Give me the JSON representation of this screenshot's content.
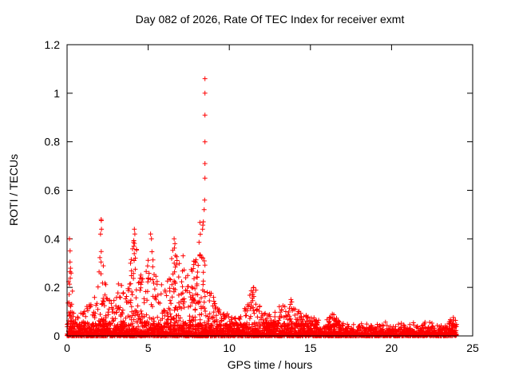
{
  "chart": {
    "title": "Day 082 of 2026, Rate Of TEC Index for receiver exmt",
    "xlabel": "GPS time / hours",
    "ylabel": "ROTI / TECUs"
  },
  "chart_data": {
    "type": "scatter",
    "title": "Day 082 of 2026, Rate Of TEC Index for receiver exmt",
    "xlabel": "GPS time / hours",
    "ylabel": "ROTI / TECUs",
    "xlim": [
      0,
      25
    ],
    "ylim": [
      0,
      1.2
    ],
    "xticks": [
      0,
      5,
      10,
      15,
      20,
      25
    ],
    "xtick_labels": [
      "0",
      "5",
      "10",
      "15",
      "20",
      "25"
    ],
    "yticks": [
      0,
      0.2,
      0.4,
      0.6,
      0.8,
      1,
      1.2
    ],
    "ytick_labels": [
      "0",
      "0.2",
      "0.4",
      "0.6",
      "0.8",
      "1",
      "1.2"
    ],
    "grid": false,
    "legend": "none",
    "marker": "plus",
    "marker_color": "#ff0000",
    "border_color": "#000000",
    "series_name": "ROTI",
    "data_x_range": [
      0,
      24
    ],
    "baseline_max": 0.06,
    "seed": 20260082,
    "envelope": [
      [
        0.0,
        0.42
      ],
      [
        0.2,
        0.4
      ],
      [
        0.35,
        0.15
      ],
      [
        0.5,
        0.1
      ],
      [
        1.0,
        0.1
      ],
      [
        1.3,
        0.13
      ],
      [
        1.6,
        0.16
      ],
      [
        1.9,
        0.2
      ],
      [
        2.1,
        0.48
      ],
      [
        2.3,
        0.3
      ],
      [
        2.6,
        0.17
      ],
      [
        3.0,
        0.15
      ],
      [
        3.2,
        0.25
      ],
      [
        3.5,
        0.18
      ],
      [
        3.8,
        0.22
      ],
      [
        4.1,
        0.44
      ],
      [
        4.3,
        0.35
      ],
      [
        4.6,
        0.25
      ],
      [
        4.9,
        0.3
      ],
      [
        5.1,
        0.42
      ],
      [
        5.4,
        0.3
      ],
      [
        5.7,
        0.22
      ],
      [
        6.0,
        0.2
      ],
      [
        6.3,
        0.25
      ],
      [
        6.6,
        0.4
      ],
      [
        6.9,
        0.35
      ],
      [
        7.1,
        0.33
      ],
      [
        7.4,
        0.25
      ],
      [
        7.7,
        0.3
      ],
      [
        8.0,
        0.35
      ],
      [
        8.2,
        0.48
      ],
      [
        8.45,
        0.48
      ],
      [
        8.6,
        0.25
      ],
      [
        8.9,
        0.22
      ],
      [
        9.2,
        0.12
      ],
      [
        9.6,
        0.1
      ],
      [
        10.0,
        0.09
      ],
      [
        10.5,
        0.08
      ],
      [
        11.0,
        0.12
      ],
      [
        11.4,
        0.2
      ],
      [
        11.6,
        0.2
      ],
      [
        11.9,
        0.12
      ],
      [
        12.3,
        0.1
      ],
      [
        12.7,
        0.09
      ],
      [
        13.0,
        0.12
      ],
      [
        13.4,
        0.13
      ],
      [
        13.8,
        0.15
      ],
      [
        14.1,
        0.12
      ],
      [
        14.5,
        0.1
      ],
      [
        15.0,
        0.08
      ],
      [
        15.5,
        0.07
      ],
      [
        16.0,
        0.07
      ],
      [
        16.4,
        0.09
      ],
      [
        17.0,
        0.06
      ],
      [
        17.5,
        0.06
      ],
      [
        18.0,
        0.07
      ],
      [
        18.5,
        0.06
      ],
      [
        19.0,
        0.07
      ],
      [
        19.5,
        0.06
      ],
      [
        20.0,
        0.06
      ],
      [
        20.5,
        0.07
      ],
      [
        21.0,
        0.06
      ],
      [
        21.5,
        0.07
      ],
      [
        22.0,
        0.06
      ],
      [
        22.5,
        0.06
      ],
      [
        23.0,
        0.07
      ],
      [
        23.5,
        0.07
      ],
      [
        24.0,
        0.08
      ]
    ],
    "outliers": [
      [
        8.5,
        1.06
      ],
      [
        8.5,
        1.0
      ],
      [
        8.5,
        0.91
      ],
      [
        8.5,
        0.8
      ],
      [
        8.5,
        0.71
      ],
      [
        8.5,
        0.65
      ],
      [
        8.48,
        0.56
      ],
      [
        8.45,
        0.52
      ],
      [
        8.4,
        0.47
      ],
      [
        8.35,
        0.44
      ],
      [
        0.15,
        0.4
      ],
      [
        2.1,
        0.48
      ],
      [
        2.12,
        0.44
      ],
      [
        4.15,
        0.44
      ],
      [
        4.18,
        0.42
      ],
      [
        5.15,
        0.42
      ],
      [
        5.2,
        0.4
      ],
      [
        6.6,
        0.4
      ],
      [
        6.65,
        0.38
      ],
      [
        7.15,
        0.33
      ],
      [
        11.5,
        0.2
      ],
      [
        11.45,
        0.18
      ],
      [
        13.8,
        0.15
      ],
      [
        13.85,
        0.14
      ],
      [
        16.35,
        0.09
      ]
    ]
  }
}
